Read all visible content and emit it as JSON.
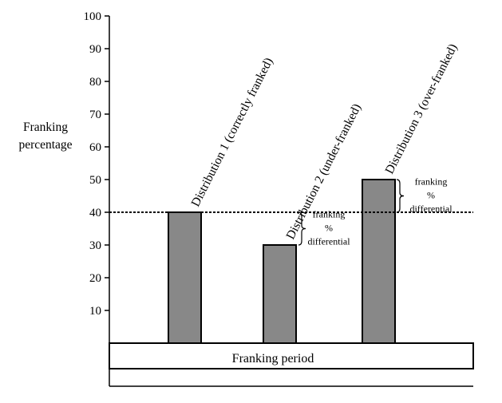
{
  "chart_data": {
    "type": "bar",
    "ylabel": [
      "Franking",
      "percentage"
    ],
    "xlabel": "Franking period",
    "ylim": [
      0,
      100
    ],
    "yticks": [
      10,
      20,
      30,
      40,
      50,
      60,
      70,
      80,
      90,
      100
    ],
    "reference_line": 40,
    "bars": [
      {
        "label": "Distribution 1  (correctly franked)",
        "value": 40
      },
      {
        "label": "Distribution 2  (under-franked)",
        "value": 30
      },
      {
        "label": "Distribution 3  (over-franked)",
        "value": 50
      }
    ],
    "annotations": [
      {
        "lines": [
          "franking",
          "%",
          "differential"
        ],
        "from": 30,
        "to": 40
      },
      {
        "lines": [
          "franking",
          "%",
          "differential"
        ],
        "from": 40,
        "to": 50
      }
    ],
    "colors": {
      "bar_fill": "#888888",
      "line": "#000000"
    }
  }
}
